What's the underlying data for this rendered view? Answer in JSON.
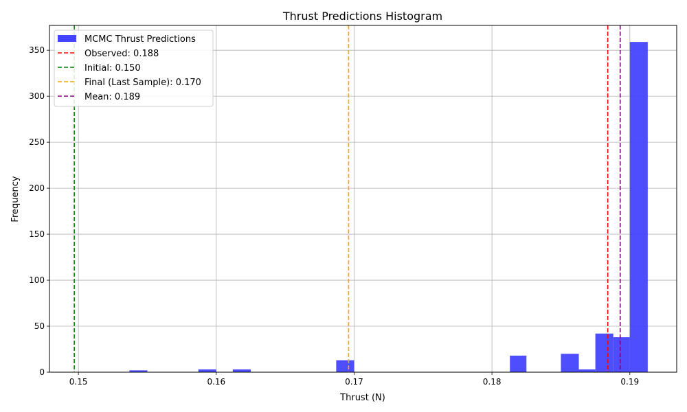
{
  "chart_data": {
    "type": "bar",
    "title": "Thrust Predictions Histogram",
    "xlabel": "Thrust (N)",
    "ylabel": "Frequency",
    "xlim": [
      0.1479,
      0.1934
    ],
    "ylim": [
      0,
      377
    ],
    "xticks": [
      {
        "value": 0.15,
        "label": "0.15"
      },
      {
        "value": 0.16,
        "label": "0.16"
      },
      {
        "value": 0.17,
        "label": "0.17"
      },
      {
        "value": 0.18,
        "label": "0.18"
      },
      {
        "value": 0.19,
        "label": "0.19"
      }
    ],
    "yticks": [
      {
        "value": 0,
        "label": "0"
      },
      {
        "value": 50,
        "label": "50"
      },
      {
        "value": 100,
        "label": "100"
      },
      {
        "value": 150,
        "label": "150"
      },
      {
        "value": 200,
        "label": "200"
      },
      {
        "value": 250,
        "label": "250"
      },
      {
        "value": 300,
        "label": "300"
      },
      {
        "value": 350,
        "label": "350"
      }
    ],
    "grid": true,
    "legend_position": "upper-left",
    "series": [
      {
        "name": "MCMC Thrust Predictions",
        "color": "#4444ff",
        "bins": [
          {
            "x0": 0.1537,
            "x1": 0.155,
            "count": 2
          },
          {
            "x0": 0.1587,
            "x1": 0.16,
            "count": 3
          },
          {
            "x0": 0.1612,
            "x1": 0.1625,
            "count": 3
          },
          {
            "x0": 0.1687,
            "x1": 0.17,
            "count": 13
          },
          {
            "x0": 0.1813,
            "x1": 0.1825,
            "count": 18
          },
          {
            "x0": 0.185,
            "x1": 0.1863,
            "count": 20
          },
          {
            "x0": 0.1863,
            "x1": 0.1875,
            "count": 3
          },
          {
            "x0": 0.1875,
            "x1": 0.1888,
            "count": 42
          },
          {
            "x0": 0.1888,
            "x1": 0.19,
            "count": 38
          },
          {
            "x0": 0.19,
            "x1": 0.1913,
            "count": 359
          }
        ]
      }
    ],
    "vlines": [
      {
        "label": "Observed: 0.188",
        "x": 0.1884,
        "color": "#ff0000"
      },
      {
        "label": "Initial: 0.150",
        "x": 0.1497,
        "color": "#008000"
      },
      {
        "label": "Final (Last Sample): 0.170",
        "x": 0.1696,
        "color": "#ffa500"
      },
      {
        "label": "Mean: 0.189",
        "x": 0.1893,
        "color": "#800080"
      }
    ]
  }
}
